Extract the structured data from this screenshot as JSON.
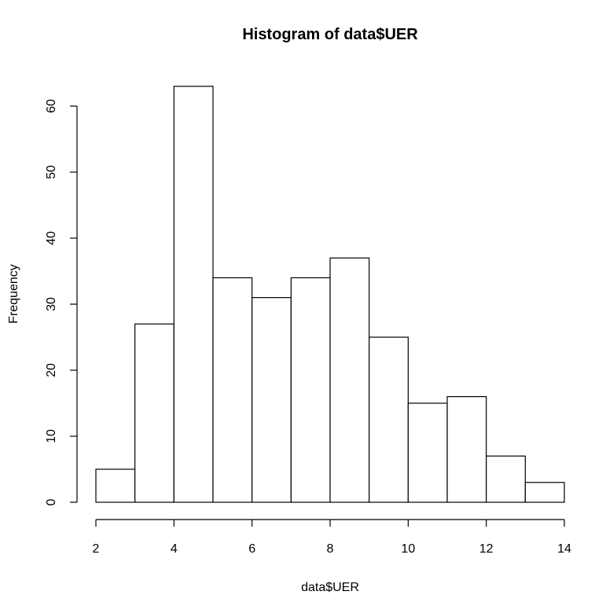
{
  "chart_data": {
    "type": "bar",
    "title": "Histogram of data$UER",
    "xlabel": "data$UER",
    "ylabel": "Frequency",
    "bins": [
      {
        "x0": 2,
        "x1": 3,
        "count": 5
      },
      {
        "x0": 3,
        "x1": 4,
        "count": 27
      },
      {
        "x0": 4,
        "x1": 5,
        "count": 63
      },
      {
        "x0": 5,
        "x1": 6,
        "count": 34
      },
      {
        "x0": 6,
        "x1": 7,
        "count": 31
      },
      {
        "x0": 7,
        "x1": 8,
        "count": 34
      },
      {
        "x0": 8,
        "x1": 9,
        "count": 37
      },
      {
        "x0": 9,
        "x1": 10,
        "count": 25
      },
      {
        "x0": 10,
        "x1": 11,
        "count": 15
      },
      {
        "x0": 11,
        "x1": 12,
        "count": 16
      },
      {
        "x0": 12,
        "x1": 13,
        "count": 7
      },
      {
        "x0": 13,
        "x1": 14,
        "count": 3
      }
    ],
    "xlim": [
      2,
      14
    ],
    "ylim": [
      0,
      63
    ],
    "xticks": [
      2,
      4,
      6,
      8,
      10,
      12,
      14
    ],
    "yticks": [
      0,
      10,
      20,
      30,
      40,
      50,
      60
    ],
    "grid": false,
    "legend": "none"
  }
}
